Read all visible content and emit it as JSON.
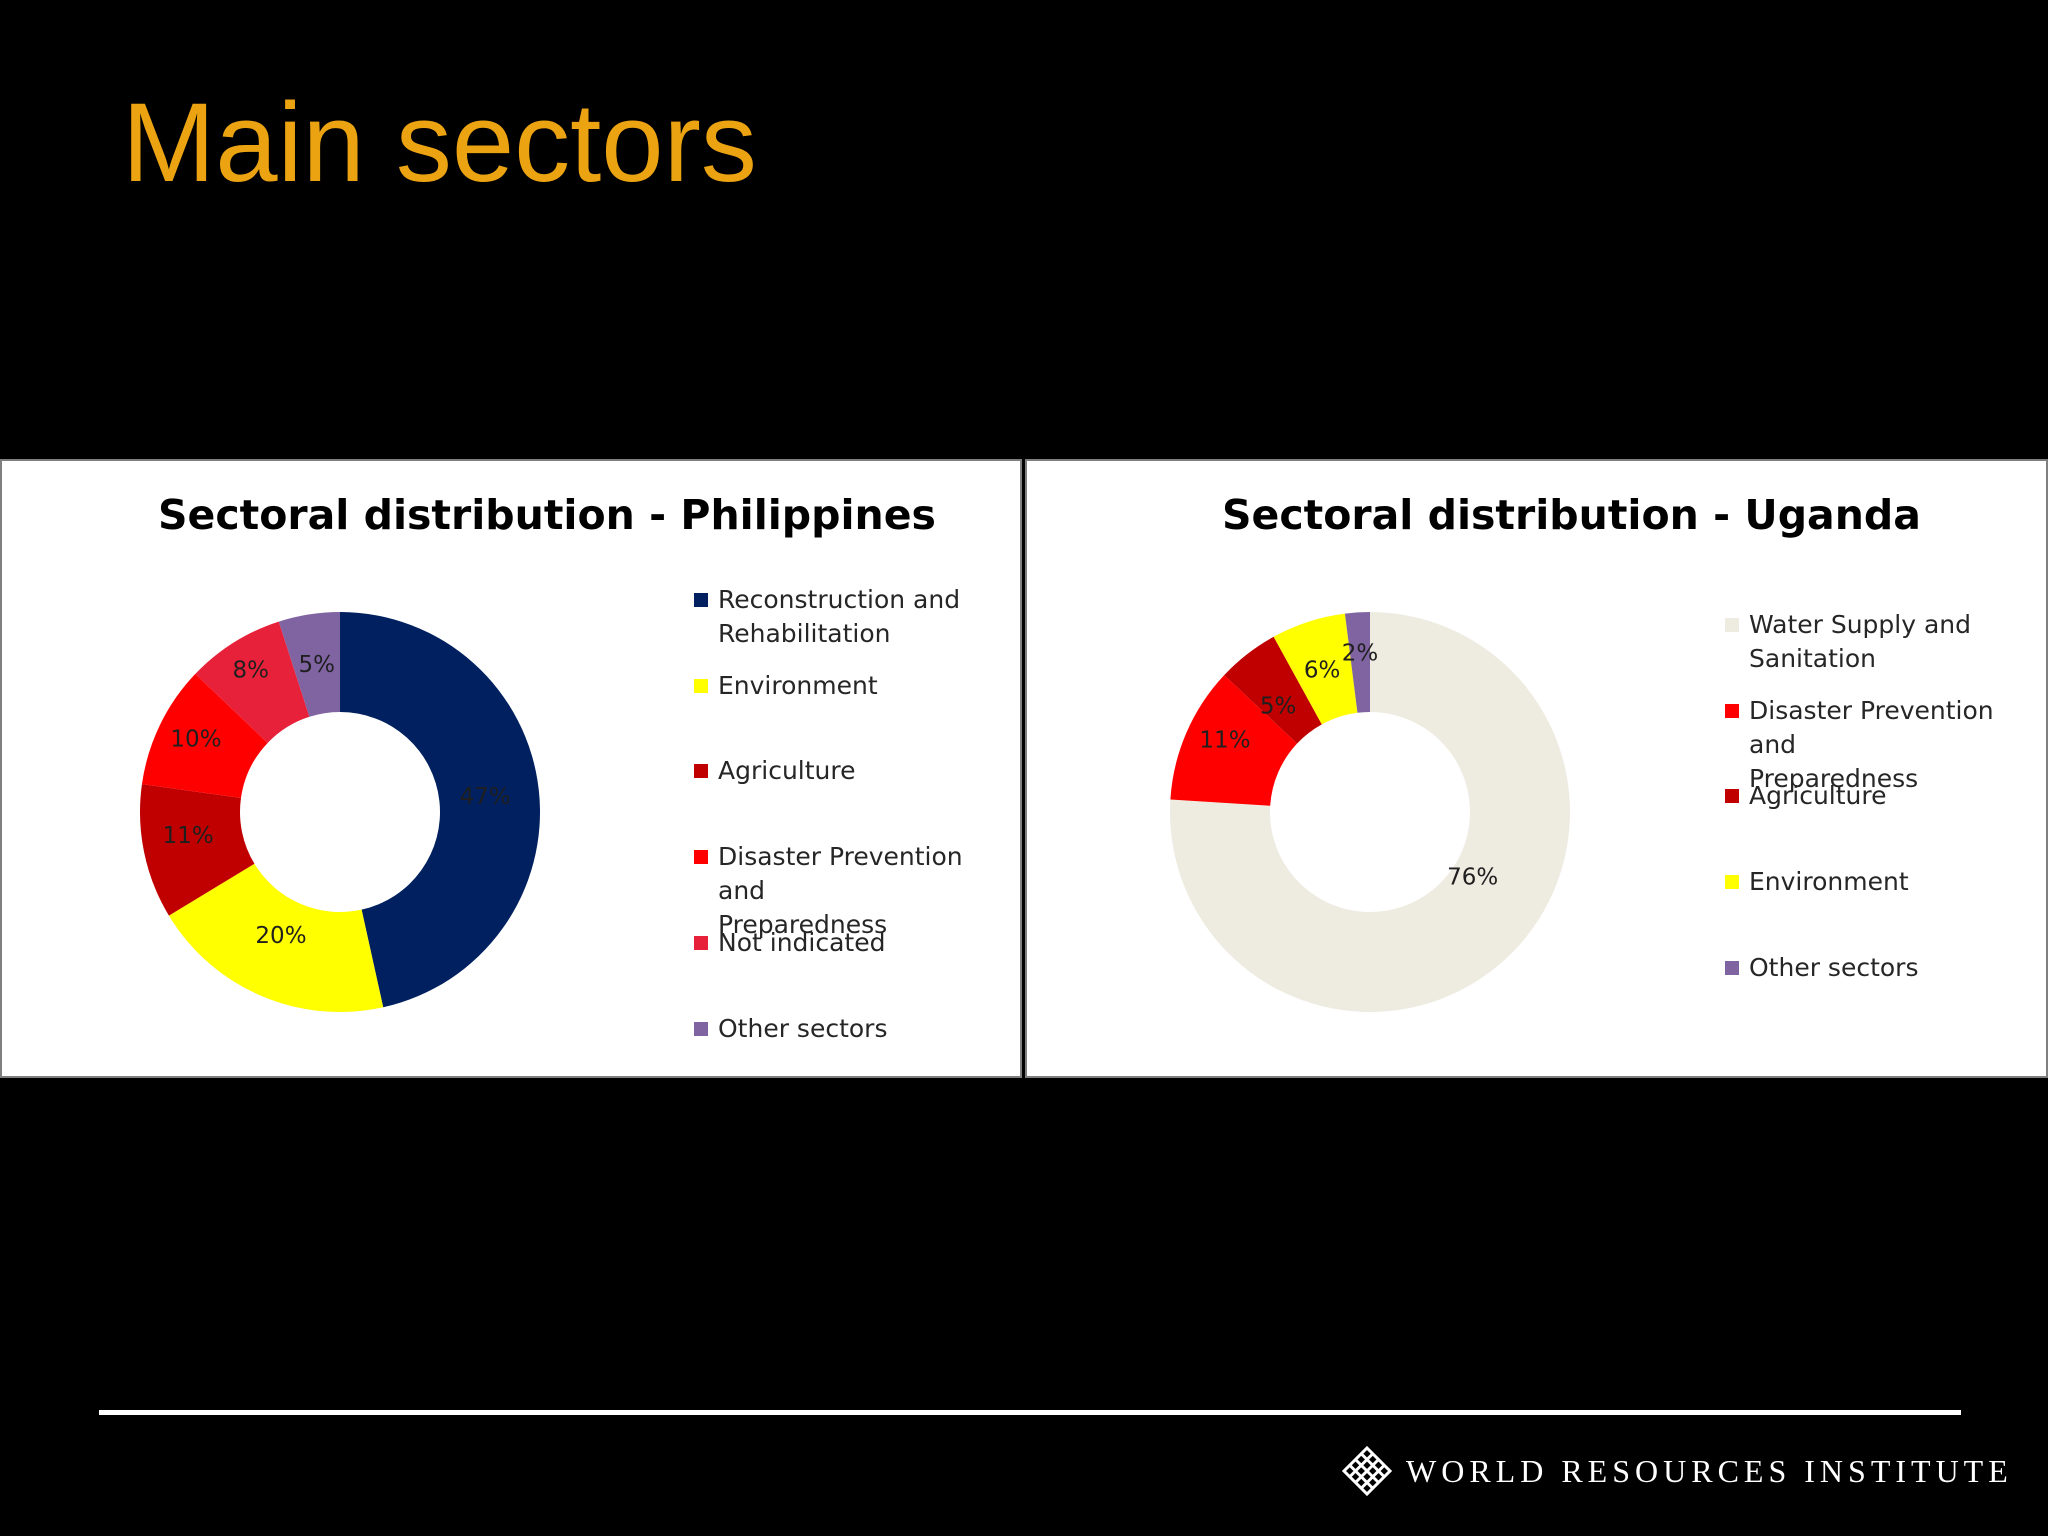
{
  "slide": {
    "title": "Main sectors"
  },
  "footer": {
    "org_name": "WORLD RESOURCES INSTITUTE",
    "logo_icon": "wri-lattice-logo-icon"
  },
  "chart_data": [
    {
      "type": "pie",
      "variant": "donut",
      "title": "Sectoral distribution - Philippines",
      "legend_position": "right",
      "categories": [
        "Reconstruction and Rehabilitation",
        "Environment",
        "Agriculture",
        "Disaster Prevention and Preparedness",
        "Not indicated",
        "Other sectors"
      ],
      "legend": [
        {
          "label": "Reconstruction and\nRehabilitation"
        },
        {
          "label": "Environment"
        },
        {
          "label": "Agriculture"
        },
        {
          "label": "Disaster Prevention and\nPreparedness"
        },
        {
          "label": "Not indicated"
        },
        {
          "label": "Other sectors"
        }
      ],
      "values": [
        47,
        20,
        11,
        10,
        8,
        5
      ],
      "data_labels": [
        "47%",
        "20%",
        "11%",
        "10%",
        "8%",
        "5%"
      ],
      "colors": [
        "#002060",
        "#FFFF00",
        "#C00000",
        "#FF0000",
        "#E8213A",
        "#8064A2"
      ]
    },
    {
      "type": "pie",
      "variant": "donut",
      "title": "Sectoral distribution - Uganda",
      "legend_position": "right",
      "categories": [
        "Water Supply and Sanitation",
        "Disaster Prevention and Preparedness",
        "Agriculture",
        "Environment",
        "Other sectors"
      ],
      "legend": [
        {
          "label": "Water Supply and\nSanitation"
        },
        {
          "label": "Disaster Prevention and\nPreparedness"
        },
        {
          "label": "Agriculture"
        },
        {
          "label": "Environment"
        },
        {
          "label": "Other sectors"
        }
      ],
      "values": [
        76,
        11,
        5,
        6,
        2
      ],
      "data_labels": [
        "76%",
        "11%",
        "5%",
        "6%",
        "2%"
      ],
      "colors": [
        "#EEECE1",
        "#FF0000",
        "#C00000",
        "#FFFF00",
        "#8064A2"
      ]
    }
  ]
}
